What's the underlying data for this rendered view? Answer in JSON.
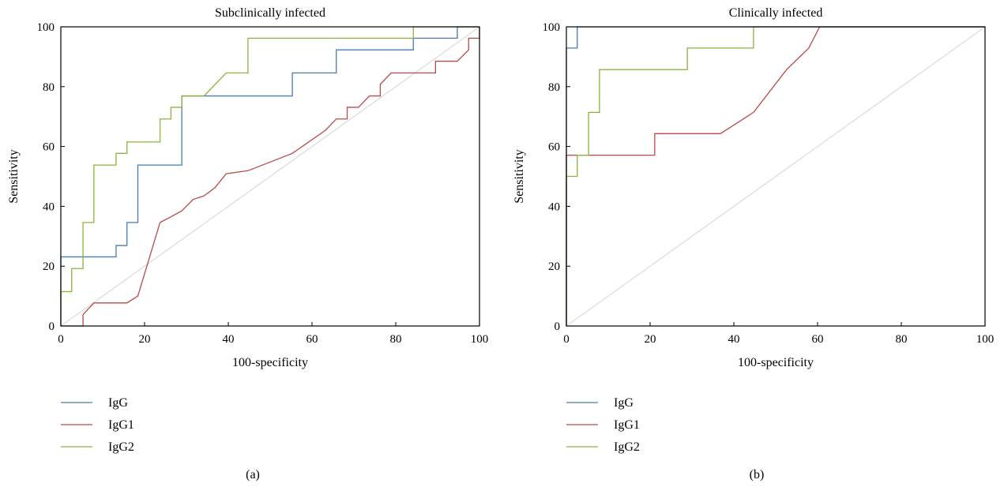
{
  "figure": {
    "panels": [
      {
        "panel_label": "(a)"
      },
      {
        "panel_label": "(b)"
      }
    ]
  },
  "chart_data": [
    {
      "type": "line",
      "title": "Subclinically infected",
      "xlabel": "100-specificity",
      "ylabel": "Sensitivity",
      "xlim": [
        0,
        100
      ],
      "ylim": [
        0,
        100
      ],
      "xticks": [
        0,
        20,
        40,
        60,
        80,
        100
      ],
      "yticks": [
        0,
        20,
        40,
        60,
        80,
        100
      ],
      "grid": false,
      "legend_position": "below",
      "reference_line": {
        "x": [
          0,
          100
        ],
        "y": [
          0,
          100
        ],
        "color": "#d3d3d3"
      },
      "series": [
        {
          "name": "IgG",
          "color": "#4a7ab5",
          "x": [
            0,
            0,
            13.2,
            13.2,
            15.8,
            15.8,
            18.4,
            18.4,
            28.9,
            28.9,
            55.3,
            55.3,
            65.8,
            65.8,
            84.2,
            84.2,
            94.7,
            94.7,
            100
          ],
          "y": [
            0,
            23.1,
            23.1,
            26.9,
            26.9,
            34.6,
            34.6,
            53.8,
            53.8,
            76.9,
            76.9,
            84.6,
            84.6,
            92.3,
            92.3,
            96.2,
            96.2,
            100,
            100
          ]
        },
        {
          "name": "IgG1",
          "color": "#b94a48",
          "x": [
            0,
            5.3,
            5.3,
            7.9,
            15.8,
            18.4,
            23.7,
            26.3,
            28.9,
            31.6,
            34.2,
            36.8,
            39.5,
            44.7,
            55.3,
            63.2,
            65.8,
            68.4,
            68.4,
            71.1,
            73.7,
            76.3,
            76.3,
            78.9,
            89.5,
            89.5,
            94.7,
            97.4,
            97.4,
            100,
            100
          ],
          "y": [
            0,
            0,
            3.8,
            7.7,
            7.7,
            10,
            34.6,
            36.5,
            38.5,
            42.3,
            43.5,
            46.2,
            50.9,
            51.9,
            57.7,
            65.4,
            69.2,
            69.2,
            73.1,
            73.1,
            76.9,
            76.9,
            80.8,
            84.6,
            84.6,
            88.5,
            88.5,
            92.3,
            96.2,
            96.2,
            100
          ]
        },
        {
          "name": "IgG2",
          "color": "#8ab43c",
          "x": [
            0,
            0,
            2.6,
            2.6,
            5.3,
            5.3,
            7.9,
            7.9,
            13.2,
            13.2,
            15.8,
            15.8,
            23.7,
            23.7,
            26.3,
            26.3,
            28.9,
            28.9,
            34.2,
            39.5,
            44.7,
            44.7,
            84.2,
            84.2,
            100
          ],
          "y": [
            0,
            11.5,
            11.5,
            19.2,
            19.2,
            34.6,
            34.6,
            53.8,
            53.8,
            57.7,
            57.7,
            61.5,
            61.5,
            69.2,
            69.2,
            73.1,
            73.1,
            76.9,
            76.9,
            84.6,
            84.6,
            96.2,
            96.2,
            100,
            100
          ]
        }
      ]
    },
    {
      "type": "line",
      "title": "Clinically infected",
      "xlabel": "100-specificity",
      "ylabel": "Sensitivity",
      "xlim": [
        0,
        100
      ],
      "ylim": [
        0,
        100
      ],
      "xticks": [
        0,
        20,
        40,
        60,
        80,
        100
      ],
      "yticks": [
        0,
        20,
        40,
        60,
        80,
        100
      ],
      "grid": false,
      "legend_position": "below",
      "reference_line": {
        "x": [
          0,
          100
        ],
        "y": [
          0,
          100
        ],
        "color": "#d3d3d3"
      },
      "series": [
        {
          "name": "IgG",
          "color": "#4a7ab5",
          "x": [
            0,
            0,
            2.6,
            2.6,
            100
          ],
          "y": [
            0,
            92.9,
            92.9,
            100,
            100
          ]
        },
        {
          "name": "IgG1",
          "color": "#b94a48",
          "x": [
            0,
            0,
            21.1,
            21.1,
            36.8,
            44.7,
            52.6,
            57.9,
            60.5,
            100
          ],
          "y": [
            0,
            57.1,
            57.1,
            64.3,
            64.3,
            71.4,
            85.7,
            92.9,
            100,
            100
          ]
        },
        {
          "name": "IgG2",
          "color": "#8ab43c",
          "x": [
            0,
            0,
            2.6,
            2.6,
            5.3,
            5.3,
            7.9,
            7.9,
            28.9,
            28.9,
            44.7,
            44.7,
            100
          ],
          "y": [
            0,
            50,
            50,
            57.1,
            57.1,
            71.4,
            71.4,
            85.7,
            85.7,
            92.9,
            92.9,
            100,
            100
          ]
        }
      ]
    }
  ]
}
